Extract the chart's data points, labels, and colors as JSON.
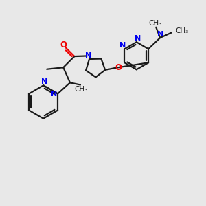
{
  "bg_color": "#e8e8e8",
  "bond_color": "#1a1a1a",
  "N_color": "#0000ee",
  "O_color": "#ee0000",
  "lw": 1.6,
  "figsize": [
    3.0,
    3.0
  ],
  "dpi": 100,
  "xlim": [
    0,
    10
  ],
  "ylim": [
    0,
    10
  ]
}
